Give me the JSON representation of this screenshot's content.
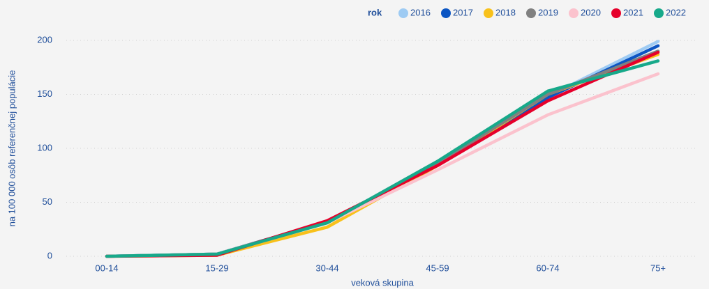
{
  "chart_data": {
    "type": "line",
    "ylabel": "na 100 000 osôb referenčnej populácie",
    "xlabel": "veková skupina",
    "legend_title": "rok",
    "legend": "top-right",
    "grid": true,
    "categories": [
      "00-14",
      "15-29",
      "30-44",
      "45-59",
      "60-74",
      "75+"
    ],
    "ylim": [
      0,
      200
    ],
    "yticks": [
      0,
      50,
      100,
      150,
      200
    ],
    "series": [
      {
        "name": "2016",
        "color": "#9ecbf3",
        "values": [
          0,
          2,
          32,
          86,
          148,
          199
        ]
      },
      {
        "name": "2017",
        "color": "#0b55c3",
        "values": [
          0,
          2,
          32,
          85,
          147,
          195
        ]
      },
      {
        "name": "2018",
        "color": "#f8c11b",
        "values": [
          0,
          1,
          27,
          84,
          150,
          187
        ]
      },
      {
        "name": "2019",
        "color": "#808080",
        "values": [
          0,
          2,
          32,
          86,
          150,
          190
        ]
      },
      {
        "name": "2020",
        "color": "#fbc2cd",
        "values": [
          0,
          2,
          31,
          80,
          131,
          169
        ]
      },
      {
        "name": "2021",
        "color": "#e6002b",
        "values": [
          0,
          1,
          33,
          84,
          144,
          189
        ]
      },
      {
        "name": "2022",
        "color": "#17a98a",
        "values": [
          0,
          2,
          31,
          88,
          153,
          181
        ]
      }
    ]
  }
}
